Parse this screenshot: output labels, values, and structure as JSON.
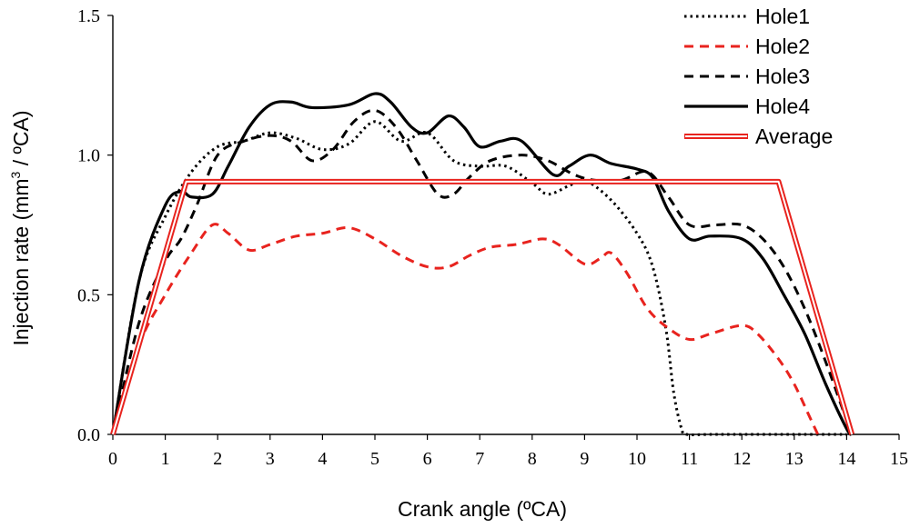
{
  "chart_data": {
    "type": "line",
    "title": "",
    "xlabel": "Crank angle (ºCA)",
    "ylabel_main": "Injection rate (mm",
    "ylabel_sup": "3",
    "ylabel_tail": " / ºCA)",
    "xlim": [
      0,
      15
    ],
    "ylim": [
      0,
      1.5
    ],
    "x_ticks": [
      0,
      1,
      2,
      3,
      4,
      5,
      6,
      7,
      8,
      9,
      10,
      11,
      12,
      13,
      14,
      15
    ],
    "y_ticks": [
      0.0,
      0.5,
      1.0,
      1.5
    ],
    "y_tick_labels": [
      "0.0",
      "0.5",
      "1.0",
      "1.5"
    ],
    "grid": false,
    "legend_position": "top-right",
    "series": [
      {
        "name": "Hole1",
        "color": "#000000",
        "style": "dotted",
        "points": [
          [
            0,
            0
          ],
          [
            0.5,
            0.55
          ],
          [
            1.0,
            0.78
          ],
          [
            1.5,
            0.94
          ],
          [
            2.0,
            1.03
          ],
          [
            2.5,
            1.05
          ],
          [
            3.0,
            1.08
          ],
          [
            3.5,
            1.06
          ],
          [
            4.0,
            1.02
          ],
          [
            4.5,
            1.04
          ],
          [
            5.0,
            1.12
          ],
          [
            5.5,
            1.05
          ],
          [
            6.0,
            1.08
          ],
          [
            6.5,
            0.98
          ],
          [
            7.0,
            0.96
          ],
          [
            7.5,
            0.96
          ],
          [
            8.0,
            0.9
          ],
          [
            8.3,
            0.86
          ],
          [
            8.7,
            0.89
          ],
          [
            9.0,
            0.91
          ],
          [
            9.5,
            0.84
          ],
          [
            10.0,
            0.72
          ],
          [
            10.3,
            0.6
          ],
          [
            10.55,
            0.38
          ],
          [
            10.7,
            0.15
          ],
          [
            10.85,
            0.02
          ],
          [
            10.95,
            0.0
          ],
          [
            11.4,
            0.0
          ],
          [
            12.0,
            0.0
          ],
          [
            13.0,
            0.0
          ],
          [
            14.0,
            0.0
          ]
        ]
      },
      {
        "name": "Hole2",
        "color": "#e8231e",
        "style": "dashed",
        "points": [
          [
            0,
            0
          ],
          [
            0.5,
            0.32
          ],
          [
            1.0,
            0.5
          ],
          [
            1.5,
            0.65
          ],
          [
            1.9,
            0.75
          ],
          [
            2.2,
            0.72
          ],
          [
            2.6,
            0.66
          ],
          [
            3.0,
            0.68
          ],
          [
            3.5,
            0.71
          ],
          [
            4.0,
            0.72
          ],
          [
            4.5,
            0.74
          ],
          [
            5.0,
            0.7
          ],
          [
            5.5,
            0.64
          ],
          [
            6.0,
            0.6
          ],
          [
            6.4,
            0.6
          ],
          [
            6.8,
            0.64
          ],
          [
            7.2,
            0.67
          ],
          [
            7.7,
            0.68
          ],
          [
            8.2,
            0.7
          ],
          [
            8.5,
            0.68
          ],
          [
            9.0,
            0.61
          ],
          [
            9.3,
            0.63
          ],
          [
            9.5,
            0.65
          ],
          [
            9.8,
            0.58
          ],
          [
            10.2,
            0.45
          ],
          [
            10.6,
            0.38
          ],
          [
            11.0,
            0.34
          ],
          [
            11.4,
            0.36
          ],
          [
            12.0,
            0.39
          ],
          [
            12.3,
            0.36
          ],
          [
            12.7,
            0.27
          ],
          [
            13.0,
            0.18
          ],
          [
            13.3,
            0.06
          ],
          [
            13.45,
            0.0
          ]
        ]
      },
      {
        "name": "Hole3",
        "color": "#000000",
        "style": "dashed",
        "points": [
          [
            0,
            0
          ],
          [
            0.5,
            0.4
          ],
          [
            1.0,
            0.62
          ],
          [
            1.3,
            0.7
          ],
          [
            1.6,
            0.82
          ],
          [
            2.0,
            1.0
          ],
          [
            2.5,
            1.05
          ],
          [
            3.0,
            1.07
          ],
          [
            3.4,
            1.05
          ],
          [
            3.8,
            0.98
          ],
          [
            4.2,
            1.02
          ],
          [
            4.6,
            1.12
          ],
          [
            5.0,
            1.16
          ],
          [
            5.4,
            1.1
          ],
          [
            5.8,
            0.98
          ],
          [
            6.2,
            0.86
          ],
          [
            6.5,
            0.86
          ],
          [
            6.8,
            0.92
          ],
          [
            7.2,
            0.98
          ],
          [
            7.8,
            1.0
          ],
          [
            8.3,
            0.98
          ],
          [
            8.8,
            0.93
          ],
          [
            9.2,
            0.91
          ],
          [
            9.7,
            0.91
          ],
          [
            10.2,
            0.94
          ],
          [
            10.6,
            0.85
          ],
          [
            11.0,
            0.75
          ],
          [
            11.5,
            0.75
          ],
          [
            12.0,
            0.75
          ],
          [
            12.4,
            0.7
          ],
          [
            12.8,
            0.6
          ],
          [
            13.2,
            0.45
          ],
          [
            13.6,
            0.26
          ],
          [
            14.0,
            0.05
          ],
          [
            14.1,
            0.0
          ]
        ]
      },
      {
        "name": "Hole4",
        "color": "#000000",
        "style": "solid",
        "points": [
          [
            0,
            0
          ],
          [
            0.5,
            0.55
          ],
          [
            1.0,
            0.82
          ],
          [
            1.3,
            0.87
          ],
          [
            1.5,
            0.85
          ],
          [
            1.9,
            0.86
          ],
          [
            2.2,
            0.96
          ],
          [
            2.6,
            1.1
          ],
          [
            3.0,
            1.18
          ],
          [
            3.4,
            1.19
          ],
          [
            3.8,
            1.17
          ],
          [
            4.5,
            1.18
          ],
          [
            5.0,
            1.22
          ],
          [
            5.3,
            1.19
          ],
          [
            5.7,
            1.1
          ],
          [
            6.0,
            1.08
          ],
          [
            6.4,
            1.14
          ],
          [
            6.7,
            1.1
          ],
          [
            7.0,
            1.03
          ],
          [
            7.4,
            1.05
          ],
          [
            7.8,
            1.05
          ],
          [
            8.4,
            0.93
          ],
          [
            8.7,
            0.96
          ],
          [
            9.1,
            1.0
          ],
          [
            9.5,
            0.97
          ],
          [
            10.0,
            0.95
          ],
          [
            10.3,
            0.92
          ],
          [
            10.6,
            0.8
          ],
          [
            11.0,
            0.7
          ],
          [
            11.4,
            0.71
          ],
          [
            12.0,
            0.7
          ],
          [
            12.4,
            0.63
          ],
          [
            12.8,
            0.5
          ],
          [
            13.2,
            0.36
          ],
          [
            13.6,
            0.18
          ],
          [
            14.0,
            0.02
          ],
          [
            14.1,
            0.0
          ]
        ]
      },
      {
        "name": "Average",
        "color": "#e8231e",
        "style": "double",
        "points": [
          [
            0,
            0
          ],
          [
            1.4,
            0.905
          ],
          [
            12.7,
            0.905
          ],
          [
            14.1,
            0.0
          ]
        ]
      }
    ]
  }
}
